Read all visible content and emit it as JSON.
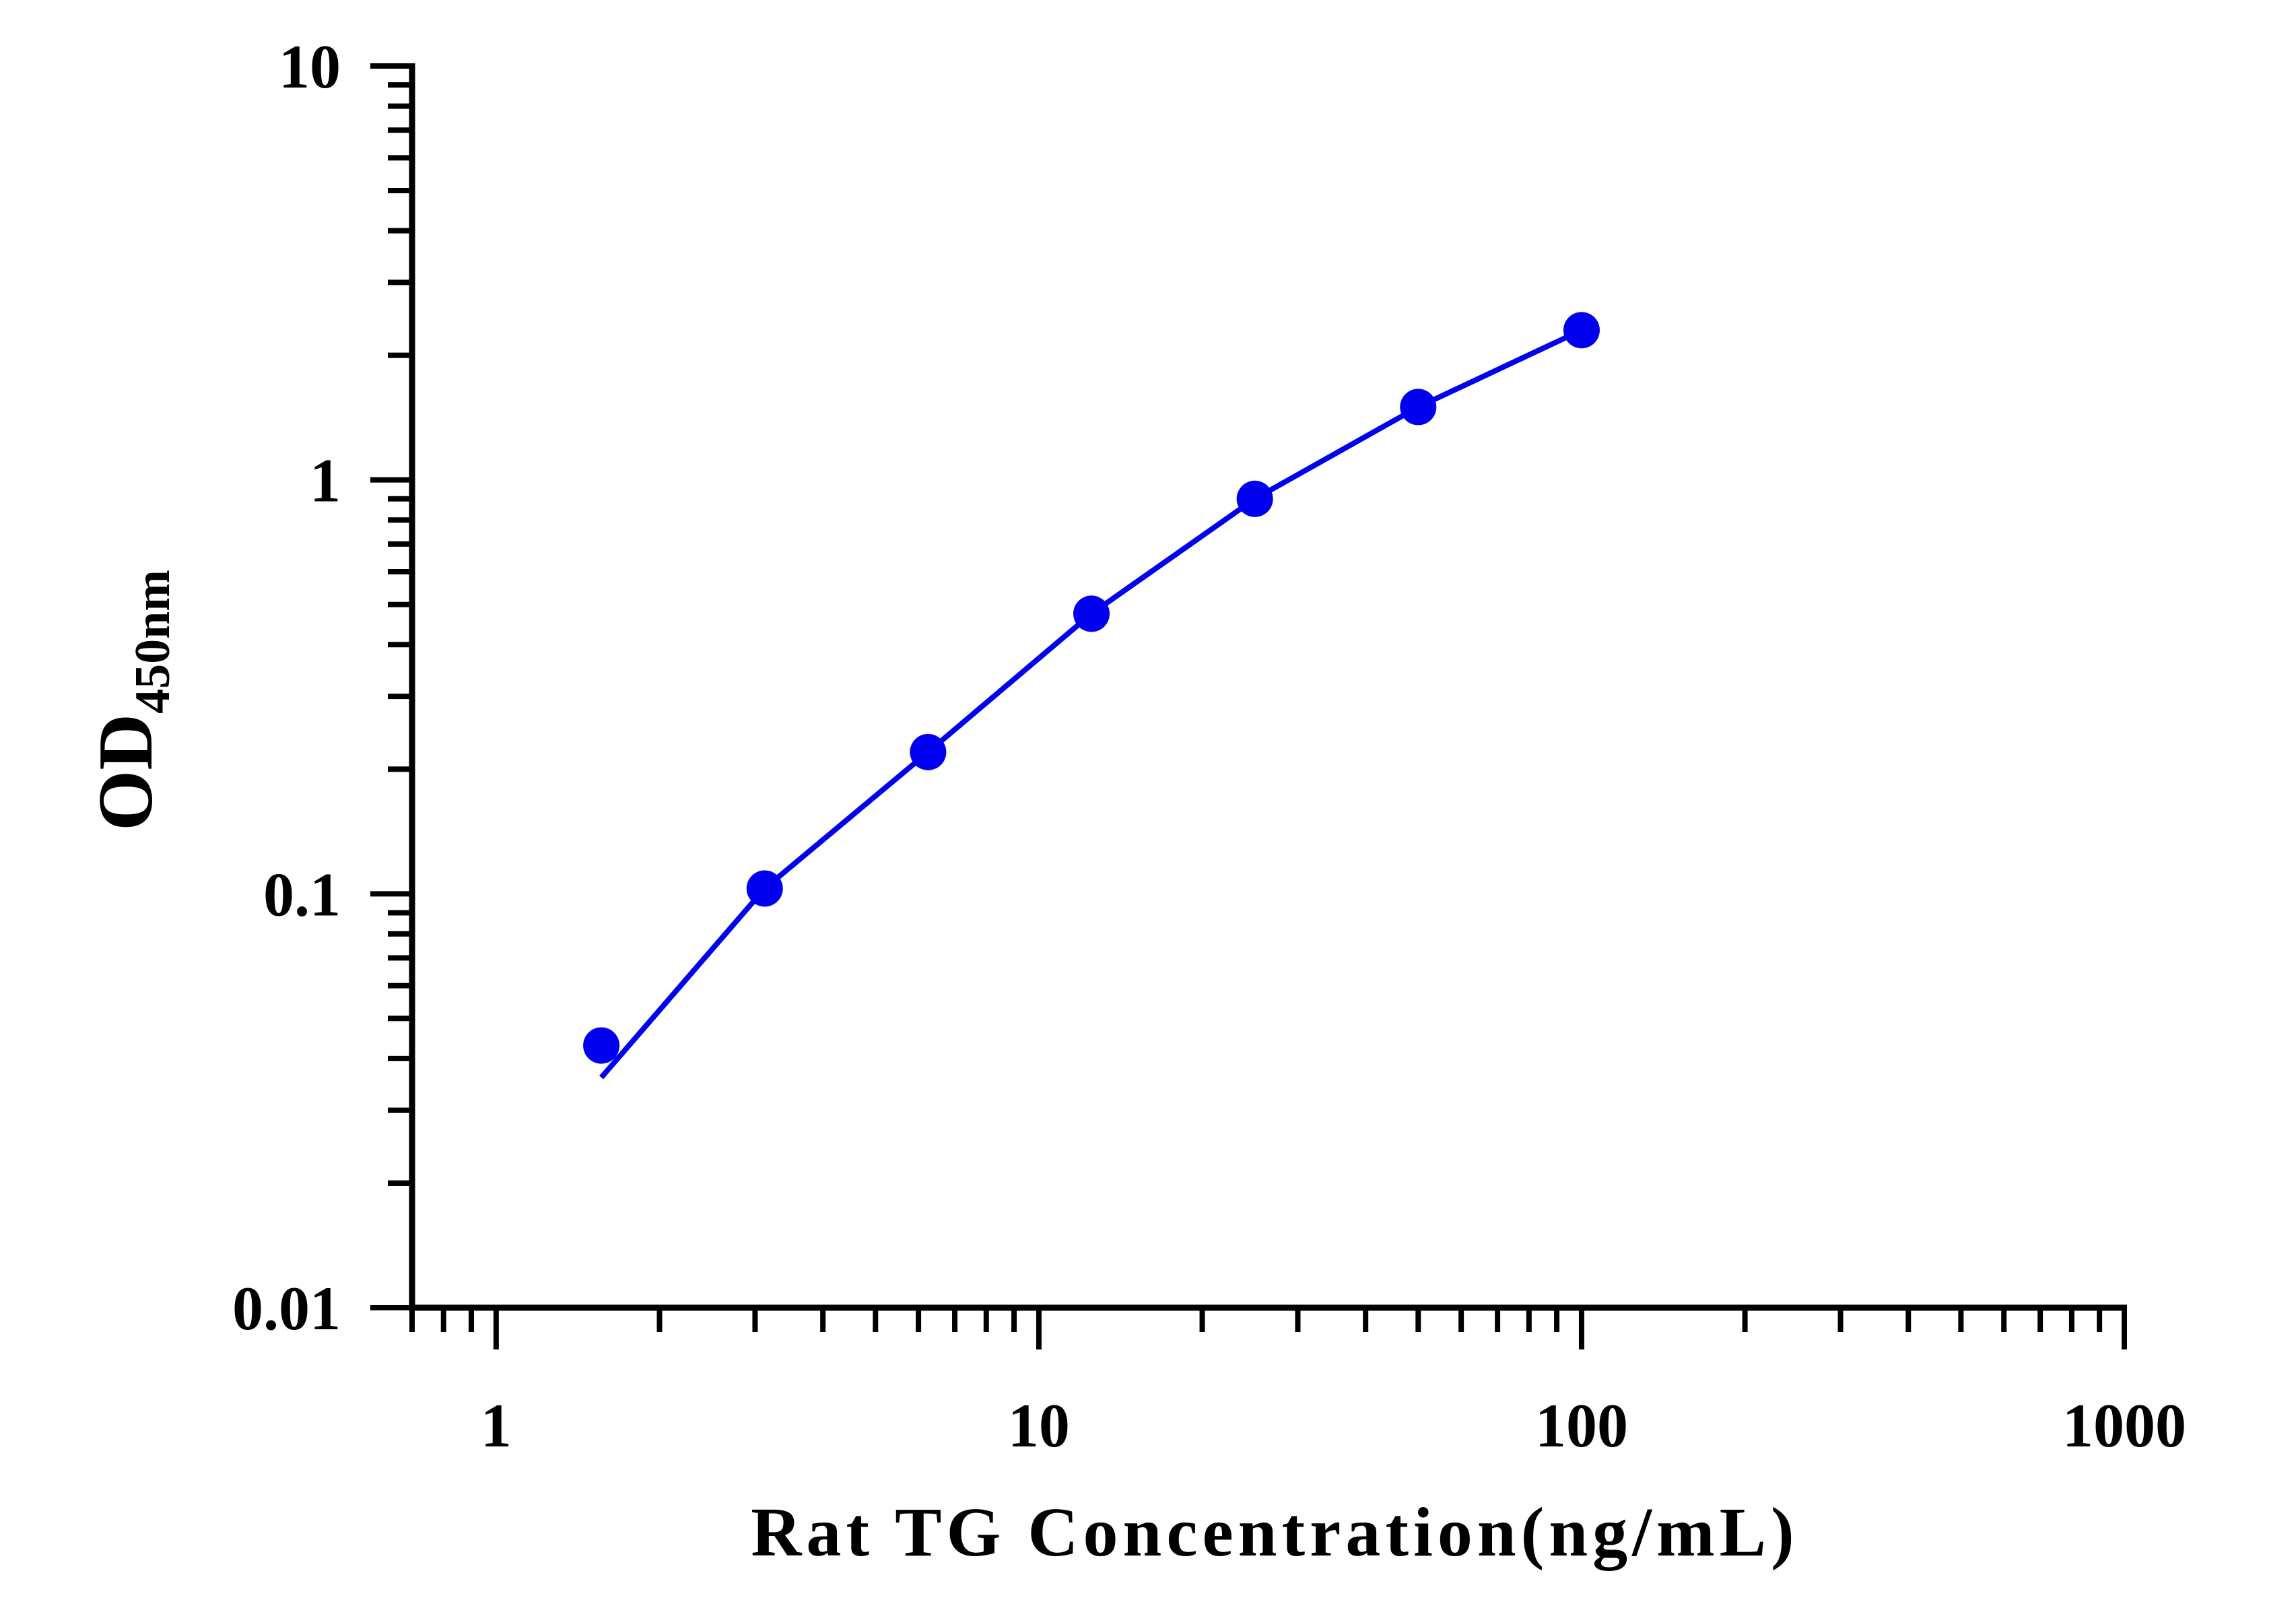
{
  "chart_data": {
    "type": "line",
    "x_scale": "log",
    "y_scale": "log",
    "xlim": [
      0.7,
      1000
    ],
    "ylim": [
      0.01,
      10
    ],
    "x_ticks": [
      "1",
      "10",
      "100",
      "1000"
    ],
    "y_ticks": [
      "0.01",
      "0.1",
      "1",
      "10"
    ],
    "xlabel": "Rat TG Concentration(ng/mL)",
    "ylabel_main": "OD",
    "ylabel_sub": "450nm",
    "grid": false,
    "colors": {
      "series": "#0000ee",
      "axis": "#000000"
    },
    "series": [
      {
        "points": [
          {
            "x": 1.5625,
            "y": 0.043
          },
          {
            "x": 3.125,
            "y": 0.103
          },
          {
            "x": 6.25,
            "y": 0.22
          },
          {
            "x": 12.5,
            "y": 0.475
          },
          {
            "x": 25,
            "y": 0.9
          },
          {
            "x": 50,
            "y": 1.5
          },
          {
            "x": 100,
            "y": 2.3
          }
        ],
        "fit_curve": [
          {
            "x": 1.5625,
            "y": 0.036
          },
          {
            "x": 3.125,
            "y": 0.103
          },
          {
            "x": 6.25,
            "y": 0.22
          },
          {
            "x": 12.5,
            "y": 0.475
          },
          {
            "x": 25,
            "y": 0.9
          },
          {
            "x": 50,
            "y": 1.5
          },
          {
            "x": 100,
            "y": 2.3
          }
        ]
      }
    ]
  }
}
